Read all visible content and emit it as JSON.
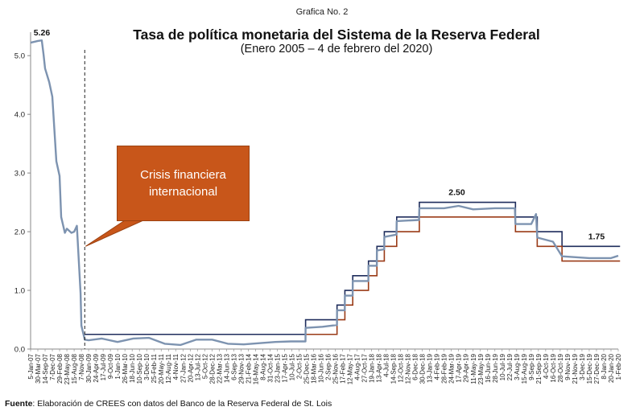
{
  "header": {
    "label": "Grafica No. 2"
  },
  "chart_data": {
    "type": "line",
    "title": "Tasa de política monetaria del Sistema de la Reserva Federal",
    "subtitle": "(Enero 2005 – 4 de febrero del 2020)",
    "ylim": [
      0,
      5.4
    ],
    "yticks": [
      "0.0",
      "1.0",
      "2.0",
      "3.0",
      "4.0",
      "5.0"
    ],
    "grid": false,
    "x_tick_labels": [
      "5-Jan-07",
      "30-Mar-07",
      "14-Sep-07",
      "7-Dec-07",
      "29-Feb-08",
      "23-May-08",
      "15-Aug-08",
      "7-Nov-08",
      "30-Jan-09",
      "24-Apr-09",
      "17-Jul-09",
      "9-Oct-09",
      "1-Jan-10",
      "26-Mar-10",
      "18-Jun-10",
      "10-Sep-10",
      "3-Dec-10",
      "25-Feb-11",
      "20-May-11",
      "12-Aug-11",
      "4-Nov-11",
      "27-Jan-12",
      "20-Apr-12",
      "13-Jul-12",
      "5-Oct-12",
      "28-Dec-12",
      "22-Mar-13",
      "14-Jun-13",
      "6-Sep-13",
      "29-Nov-13",
      "21-Feb-14",
      "16-May-14",
      "8-Aug-14",
      "31-Oct-14",
      "23-Jan-15",
      "17-Apr-15",
      "10-Jul-15",
      "2-Oct-15",
      "25-Dec-15",
      "18-Mar-16",
      "10-Jun-16",
      "2-Sep-16",
      "25-Nov-16",
      "17-Feb-17",
      "12-May-17",
      "4-Aug-17",
      "27-Oct-17",
      "19-Jan-18",
      "13-Apr-18",
      "4-Jul-18",
      "14-Sep-18",
      "12-Oct-18",
      "12-Nov-18",
      "6-Dec-18",
      "30-Dec-18",
      "13-Jan-19",
      "4-Feb-19",
      "28-Feb-19",
      "24-Mar-19",
      "17-Apr-19",
      "29-Apr-19",
      "11-May-19",
      "23-May-19",
      "16-Jun-19",
      "28-Jun-19",
      "10-Jul-19",
      "22-Jul-19",
      "3-Aug-19",
      "15-Aug-19",
      "9-Sep-19",
      "21-Sep-19",
      "4-Oct-19",
      "16-Oct-19",
      "28-Oct-19",
      "9-Nov-19",
      "21-Nov-19",
      "3-Dec-19",
      "15-Dec-19",
      "27-Dec-19",
      "8-Jan-20",
      "20-Jan-20",
      "1-Feb-20"
    ],
    "tick_dates": [
      "2007-01-05",
      "2007-03-30",
      "2007-09-14",
      "2007-12-07",
      "2008-02-29",
      "2008-05-23",
      "2008-08-15",
      "2008-11-07",
      "2009-01-30",
      "2009-04-24",
      "2009-07-17",
      "2009-10-09",
      "2010-01-01",
      "2010-03-26",
      "2010-06-18",
      "2010-09-10",
      "2010-12-03",
      "2011-02-25",
      "2011-05-20",
      "2011-08-12",
      "2011-11-04",
      "2012-01-27",
      "2012-04-20",
      "2012-07-13",
      "2012-10-05",
      "2012-12-28",
      "2013-03-22",
      "2013-06-14",
      "2013-09-06",
      "2013-11-29",
      "2014-02-21",
      "2014-05-16",
      "2014-08-08",
      "2014-10-31",
      "2015-01-23",
      "2015-04-17",
      "2015-07-10",
      "2015-10-02",
      "2015-12-25",
      "2016-03-18",
      "2016-06-10",
      "2016-09-02",
      "2016-11-25",
      "2017-02-17",
      "2017-05-12",
      "2017-08-04",
      "2017-10-27",
      "2018-01-19",
      "2018-04-13",
      "2018-07-04",
      "2018-09-14",
      "2018-10-12",
      "2018-11-12",
      "2018-12-06",
      "2018-12-30",
      "2019-01-13",
      "2019-02-04",
      "2019-02-28",
      "2019-03-24",
      "2019-04-17",
      "2019-04-29",
      "2019-05-11",
      "2019-05-23",
      "2019-06-16",
      "2019-06-28",
      "2019-07-10",
      "2019-07-22",
      "2019-08-03",
      "2019-08-15",
      "2019-09-09",
      "2019-09-21",
      "2019-10-04",
      "2019-10-16",
      "2019-10-28",
      "2019-11-09",
      "2019-11-21",
      "2019-12-03",
      "2019-12-15",
      "2019-12-27",
      "2020-01-08",
      "2020-01-20",
      "2020-02-01"
    ],
    "series": [
      {
        "role": "upper target bound",
        "color": "#1f2d5c",
        "steps": [
          {
            "x": "2008-12-16",
            "y": 0.25
          },
          {
            "x": "2015-12-17",
            "y": 0.5
          },
          {
            "x": "2016-12-15",
            "y": 0.75
          },
          {
            "x": "2017-03-16",
            "y": 1.0
          },
          {
            "x": "2017-06-15",
            "y": 1.25
          },
          {
            "x": "2017-12-14",
            "y": 1.5
          },
          {
            "x": "2018-03-22",
            "y": 1.75
          },
          {
            "x": "2018-06-14",
            "y": 2.0
          },
          {
            "x": "2018-09-27",
            "y": 2.25
          },
          {
            "x": "2018-12-20",
            "y": 2.5
          },
          {
            "x": "2019-08-01",
            "y": 2.25
          },
          {
            "x": "2019-09-19",
            "y": 2.0
          },
          {
            "x": "2019-10-31",
            "y": 1.75
          },
          {
            "x": "2020-02-04",
            "y": 1.75
          }
        ]
      },
      {
        "role": "lower target bound",
        "color": "#9a3b17",
        "steps": [
          {
            "x": "2015-12-17",
            "y": 0.25
          },
          {
            "x": "2016-12-15",
            "y": 0.5
          },
          {
            "x": "2017-03-16",
            "y": 0.75
          },
          {
            "x": "2017-06-15",
            "y": 1.0
          },
          {
            "x": "2017-12-14",
            "y": 1.25
          },
          {
            "x": "2018-03-22",
            "y": 1.5
          },
          {
            "x": "2018-06-14",
            "y": 1.75
          },
          {
            "x": "2018-09-27",
            "y": 2.0
          },
          {
            "x": "2018-12-20",
            "y": 2.25
          },
          {
            "x": "2019-08-01",
            "y": 2.0
          },
          {
            "x": "2019-09-19",
            "y": 1.75
          },
          {
            "x": "2019-10-31",
            "y": 1.5
          },
          {
            "x": "2020-02-04",
            "y": 1.5
          }
        ]
      },
      {
        "role": "effective rate",
        "color": "#7d93b0",
        "points": [
          {
            "x": "2007-01-05",
            "y": 5.22
          },
          {
            "x": "2007-03-30",
            "y": 5.25
          },
          {
            "x": "2007-06-29",
            "y": 5.26
          },
          {
            "x": "2007-08-10",
            "y": 5.02
          },
          {
            "x": "2007-09-14",
            "y": 4.78
          },
          {
            "x": "2007-10-31",
            "y": 4.55
          },
          {
            "x": "2007-12-07",
            "y": 4.3
          },
          {
            "x": "2008-01-22",
            "y": 3.2
          },
          {
            "x": "2008-02-29",
            "y": 2.95
          },
          {
            "x": "2008-03-18",
            "y": 2.25
          },
          {
            "x": "2008-04-30",
            "y": 1.98
          },
          {
            "x": "2008-05-23",
            "y": 2.05
          },
          {
            "x": "2008-07-15",
            "y": 1.98
          },
          {
            "x": "2008-08-15",
            "y": 2.0
          },
          {
            "x": "2008-09-16",
            "y": 2.1
          },
          {
            "x": "2008-10-08",
            "y": 1.5
          },
          {
            "x": "2008-10-29",
            "y": 0.95
          },
          {
            "x": "2008-11-07",
            "y": 0.4
          },
          {
            "x": "2008-12-16",
            "y": 0.16
          },
          {
            "x": "2009-01-30",
            "y": 0.15
          },
          {
            "x": "2009-06-30",
            "y": 0.18
          },
          {
            "x": "2009-12-31",
            "y": 0.12
          },
          {
            "x": "2010-06-30",
            "y": 0.18
          },
          {
            "x": "2010-12-31",
            "y": 0.19
          },
          {
            "x": "2011-06-30",
            "y": 0.09
          },
          {
            "x": "2011-12-31",
            "y": 0.07
          },
          {
            "x": "2012-06-30",
            "y": 0.16
          },
          {
            "x": "2012-12-31",
            "y": 0.16
          },
          {
            "x": "2013-06-30",
            "y": 0.09
          },
          {
            "x": "2013-12-31",
            "y": 0.08
          },
          {
            "x": "2014-06-30",
            "y": 0.1
          },
          {
            "x": "2014-12-31",
            "y": 0.12
          },
          {
            "x": "2015-06-30",
            "y": 0.13
          },
          {
            "x": "2015-12-16",
            "y": 0.13
          },
          {
            "x": "2015-12-17",
            "y": 0.36
          },
          {
            "x": "2016-06-30",
            "y": 0.38
          },
          {
            "x": "2016-12-14",
            "y": 0.41
          },
          {
            "x": "2016-12-15",
            "y": 0.66
          },
          {
            "x": "2017-03-15",
            "y": 0.66
          },
          {
            "x": "2017-03-16",
            "y": 0.91
          },
          {
            "x": "2017-06-14",
            "y": 0.91
          },
          {
            "x": "2017-06-15",
            "y": 1.16
          },
          {
            "x": "2017-12-13",
            "y": 1.16
          },
          {
            "x": "2017-12-14",
            "y": 1.42
          },
          {
            "x": "2018-03-21",
            "y": 1.42
          },
          {
            "x": "2018-03-22",
            "y": 1.68
          },
          {
            "x": "2018-06-13",
            "y": 1.7
          },
          {
            "x": "2018-06-14",
            "y": 1.91
          },
          {
            "x": "2018-09-26",
            "y": 1.95
          },
          {
            "x": "2018-09-27",
            "y": 2.18
          },
          {
            "x": "2018-12-19",
            "y": 2.2
          },
          {
            "x": "2018-12-20",
            "y": 2.4
          },
          {
            "x": "2019-02-28",
            "y": 2.4
          },
          {
            "x": "2019-04-17",
            "y": 2.44
          },
          {
            "x": "2019-05-11",
            "y": 2.38
          },
          {
            "x": "2019-06-28",
            "y": 2.4
          },
          {
            "x": "2019-07-31",
            "y": 2.4
          },
          {
            "x": "2019-08-01",
            "y": 2.13
          },
          {
            "x": "2019-09-09",
            "y": 2.13
          },
          {
            "x": "2019-09-17",
            "y": 2.3
          },
          {
            "x": "2019-09-19",
            "y": 1.9
          },
          {
            "x": "2019-10-16",
            "y": 1.83
          },
          {
            "x": "2019-10-31",
            "y": 1.58
          },
          {
            "x": "2019-12-15",
            "y": 1.55
          },
          {
            "x": "2020-01-20",
            "y": 1.55
          },
          {
            "x": "2020-02-01",
            "y": 1.59
          }
        ]
      }
    ],
    "annotations": [
      {
        "text": "5.26",
        "x": "2007-01-05",
        "y": 5.26
      },
      {
        "text": "2.50",
        "x": "2019-04-11",
        "y": 2.5
      },
      {
        "text": "1.75",
        "x": "2019-12-27",
        "y": 1.75
      }
    ],
    "crisis_marker": {
      "x": "2008-12-16"
    },
    "callout": {
      "text": "Crisis financiera internacional",
      "color": "#c8561a"
    }
  },
  "source": {
    "label": "Fuente",
    "text": ": Elaboración de CREES con datos del Banco de la Reserva Federal de St. Lois"
  }
}
